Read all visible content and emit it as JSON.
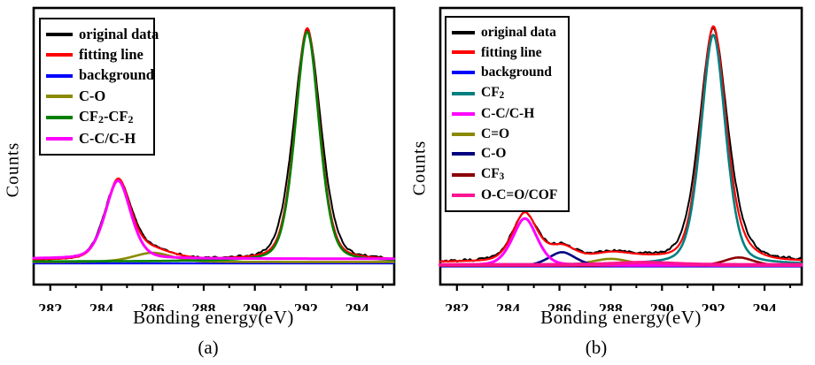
{
  "figure_title": "",
  "chart_data": [
    {
      "id": "a",
      "type": "line",
      "title": "",
      "xlabel": "Bonding energy(eV)",
      "ylabel": "Counts",
      "sublabel": "(a)",
      "x_ticks": [
        282,
        284,
        286,
        288,
        290,
        292,
        294
      ],
      "x_minor_ticks": [
        283,
        285,
        287,
        289,
        291,
        293,
        295
      ],
      "x_range": [
        281.35,
        295.45
      ],
      "ylim": [
        0,
        1.15
      ],
      "grid": false,
      "legend_position": "top-left",
      "y_axis_ticks": "none",
      "series": [
        {
          "name": "original data",
          "label": "original data",
          "color": "#000000",
          "line_width": 2,
          "base": 0.013,
          "noise": 0.007,
          "peaks": [
            {
              "center": 292.05,
              "sigma": 0.56,
              "amplitude": 1.0
            },
            {
              "center": 284.65,
              "sigma": 0.55,
              "amplitude": 0.34
            },
            {
              "center": 286.0,
              "sigma": 0.8,
              "amplitude": 0.04
            }
          ]
        },
        {
          "name": "fitting line",
          "label": "fitting line",
          "color": "#ff0000",
          "line_width": 2.2,
          "base": 0.013,
          "noise": 0,
          "peaks": [
            {
              "center": 292.05,
              "sigma": 0.5,
              "amplitude": 1.01
            },
            {
              "center": 284.65,
              "sigma": 0.52,
              "amplitude": 0.345
            },
            {
              "center": 286.0,
              "sigma": 0.8,
              "amplitude": 0.04
            }
          ]
        },
        {
          "name": "background",
          "label": "background",
          "color": "#0000ff",
          "line_width": 2.2,
          "base": 0.0,
          "noise": 0,
          "peaks": []
        },
        {
          "name": "C-O",
          "label": "C-O",
          "color": "#8a8a00",
          "line_width": 2.6,
          "base": 0.006,
          "noise": 0,
          "peaks": [
            {
              "center": 286.0,
              "sigma": 0.8,
              "amplitude": 0.04
            }
          ]
        },
        {
          "name": "CF2-CF2",
          "label": "CF_2-CF_2",
          "color": "#008000",
          "line_width": 2.6,
          "base": 0.008,
          "noise": 0,
          "peaks": [
            {
              "center": 292.05,
              "sigma": 0.49,
              "amplitude": 1.0
            }
          ]
        },
        {
          "name": "C-C/C-H",
          "label": "C-C/C-H",
          "color": "#ff00ff",
          "line_width": 3,
          "base": 0.02,
          "noise": 0,
          "peaks": [
            {
              "center": 284.65,
              "sigma": 0.52,
              "amplitude": 0.34
            }
          ]
        }
      ],
      "draw_order": [
        2,
        0,
        1,
        3,
        4,
        5
      ]
    },
    {
      "id": "b",
      "type": "line",
      "title": "",
      "xlabel": "Bonding energy(eV)",
      "ylabel": "Counts",
      "sublabel": "(b)",
      "x_ticks": [
        282,
        284,
        286,
        288,
        290,
        292,
        294
      ],
      "x_minor_ticks": [
        283,
        285,
        287,
        289,
        291,
        293,
        295
      ],
      "x_range": [
        281.35,
        295.45
      ],
      "ylim": [
        0,
        1.15
      ],
      "grid": false,
      "legend_position": "top-left",
      "y_axis_ticks": "none",
      "series": [
        {
          "name": "original data",
          "label": "original data",
          "color": "#000000",
          "line_width": 2,
          "base": 0.024,
          "noise": 0.008,
          "peaks": [
            {
              "center": 292.0,
              "sigma": 0.57,
              "amplitude": 1.0
            },
            {
              "center": 284.65,
              "sigma": 0.52,
              "amplitude": 0.205
            },
            {
              "center": 288.0,
              "sigma": 0.8,
              "amplitude": 0.03
            },
            {
              "center": 286.1,
              "sigma": 0.55,
              "amplitude": 0.06
            },
            {
              "center": 293.0,
              "sigma": 0.6,
              "amplitude": 0.038
            },
            {
              "center": 289.3,
              "sigma": 1.2,
              "amplitude": 0.012
            }
          ]
        },
        {
          "name": "fitting line",
          "label": "fitting line",
          "color": "#ff0000",
          "line_width": 2.2,
          "base": 0.021,
          "noise": 0,
          "peaks": [
            {
              "center": 292.0,
              "sigma": 0.51,
              "amplitude": 1.015
            },
            {
              "center": 284.65,
              "sigma": 0.5,
              "amplitude": 0.21
            },
            {
              "center": 288.0,
              "sigma": 0.8,
              "amplitude": 0.03
            },
            {
              "center": 286.1,
              "sigma": 0.55,
              "amplitude": 0.062
            },
            {
              "center": 293.0,
              "sigma": 0.6,
              "amplitude": 0.038
            },
            {
              "center": 289.3,
              "sigma": 1.2,
              "amplitude": 0.012
            }
          ]
        },
        {
          "name": "background",
          "label": "background",
          "color": "#0000ff",
          "line_width": 2.2,
          "base": 0.002,
          "noise": 0,
          "peaks": []
        },
        {
          "name": "CF2",
          "label": "CF_2",
          "color": "#008080",
          "line_width": 2.6,
          "base": 0.01,
          "noise": 0,
          "peaks": [
            {
              "center": 292.0,
              "sigma": 0.5,
              "amplitude": 1.0
            }
          ]
        },
        {
          "name": "C-C/C-H",
          "label": "C-C/C-H",
          "color": "#ff00ff",
          "line_width": 3,
          "base": 0.006,
          "noise": 0,
          "peaks": [
            {
              "center": 284.65,
              "sigma": 0.5,
              "amplitude": 0.205
            }
          ]
        },
        {
          "name": "C=O",
          "label": "C=O",
          "color": "#8a8a00",
          "line_width": 2.6,
          "base": 0.005,
          "noise": 0,
          "peaks": [
            {
              "center": 288.0,
              "sigma": 0.8,
              "amplitude": 0.03
            }
          ]
        },
        {
          "name": "C-O",
          "label": "C-O",
          "color": "#000080",
          "line_width": 2.6,
          "base": 0.004,
          "noise": 0,
          "peaks": [
            {
              "center": 286.1,
              "sigma": 0.55,
              "amplitude": 0.06
            }
          ]
        },
        {
          "name": "CF3",
          "label": "CF_3",
          "color": "#8b0000",
          "line_width": 2.6,
          "base": 0.005,
          "noise": 0,
          "peaks": [
            {
              "center": 293.0,
              "sigma": 0.6,
              "amplitude": 0.036
            }
          ]
        },
        {
          "name": "O-C=O/COF",
          "label": "O-C=O/COF",
          "color": "#ff1493",
          "line_width": 4,
          "base": 0.009,
          "noise": 0,
          "peaks": [
            {
              "center": 289.3,
              "sigma": 1.2,
              "amplitude": 0.01
            }
          ]
        }
      ],
      "draw_order": [
        2,
        0,
        1,
        5,
        6,
        7,
        3,
        4,
        8
      ]
    }
  ]
}
